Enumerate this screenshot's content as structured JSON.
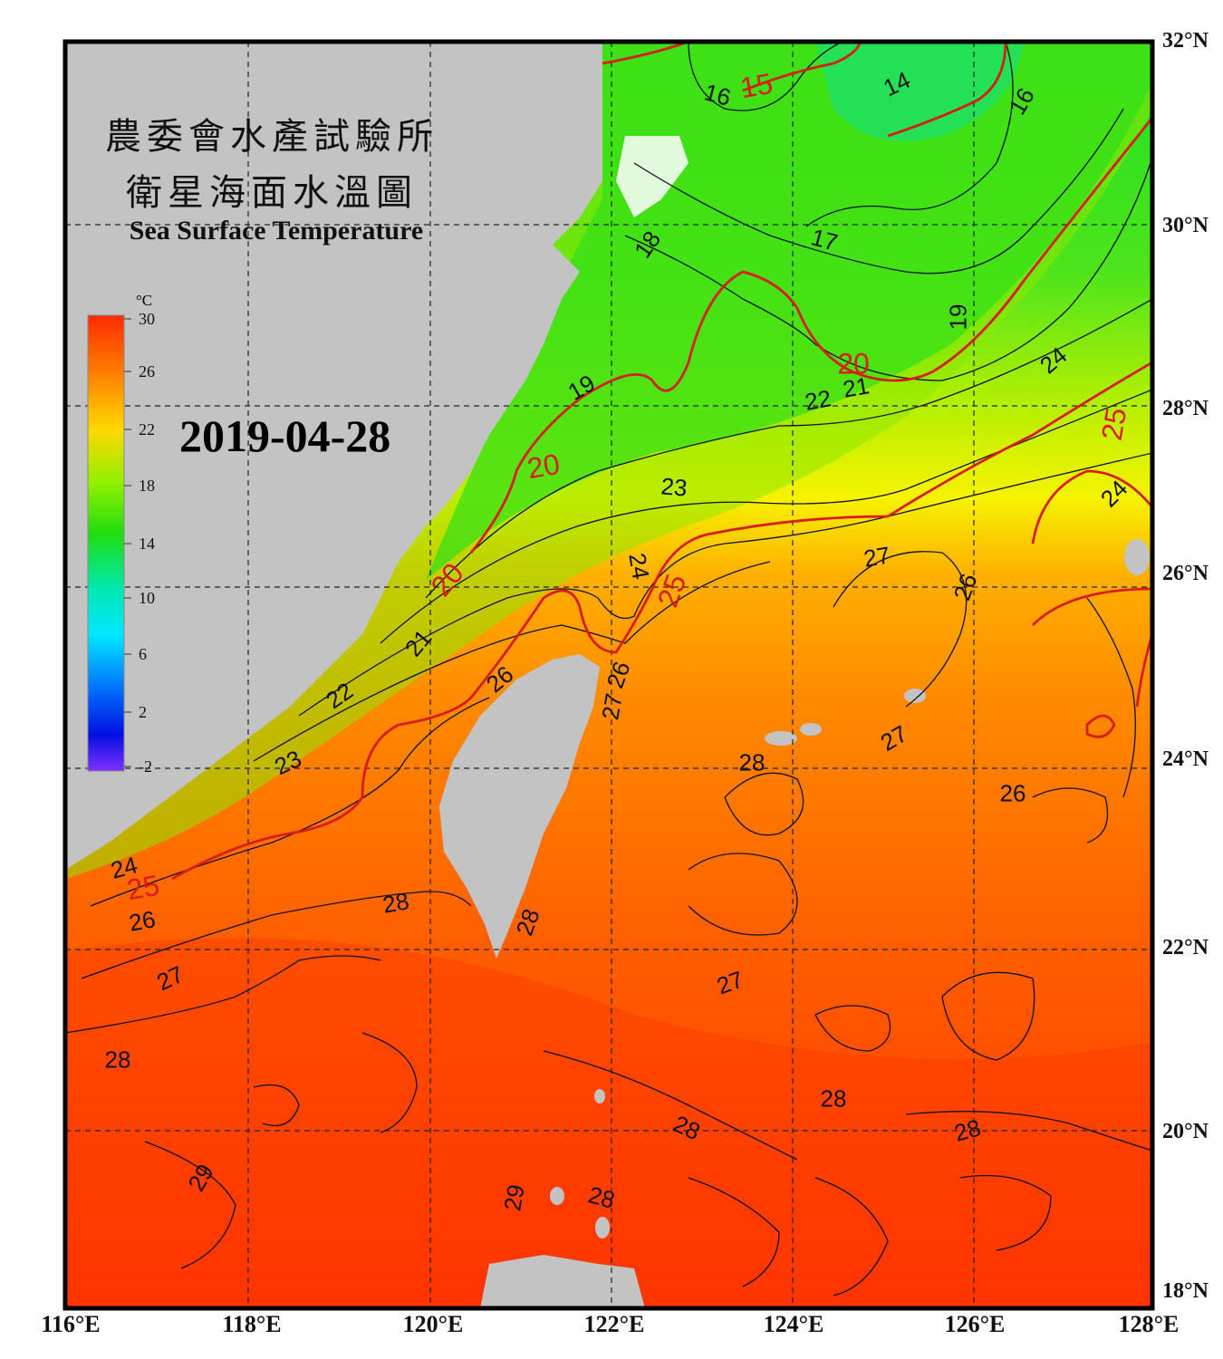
{
  "title_zh_line1": "農委會水產試驗所",
  "title_zh_line2": "衛星海面水溫圖",
  "title_en": "Sea Surface Temperature",
  "date": "2019-04-28",
  "colorbar": {
    "unit": "°C",
    "ticks": [
      "30",
      "26",
      "22",
      "18",
      "14",
      "10",
      "6",
      "2",
      "-2"
    ],
    "colors": [
      "#ff3300",
      "#ff7a00",
      "#ffd800",
      "#b6ff00",
      "#2ee000",
      "#00e0a0",
      "#00f0ff",
      "#0090ff",
      "#0010e0",
      "#7a2bff"
    ]
  },
  "lat_labels": [
    "32°N",
    "30°N",
    "28°N",
    "26°N",
    "24°N",
    "22°N",
    "20°N",
    "18°N"
  ],
  "lon_labels": [
    "116°E",
    "118°E",
    "120°E",
    "122°E",
    "124°E",
    "126°E",
    "128°E"
  ],
  "contour_labels": [
    {
      "text": "16",
      "red": false
    },
    {
      "text": "15",
      "red": true
    },
    {
      "text": "14",
      "red": false
    },
    {
      "text": "16",
      "red": false
    },
    {
      "text": "18",
      "red": false
    },
    {
      "text": "17",
      "red": false
    },
    {
      "text": "19",
      "red": false
    },
    {
      "text": "20",
      "red": true
    },
    {
      "text": "21",
      "red": false
    },
    {
      "text": "22",
      "red": false
    },
    {
      "text": "24",
      "red": false
    },
    {
      "text": "25",
      "red": true
    },
    {
      "text": "19",
      "red": false
    },
    {
      "text": "20",
      "red": true
    },
    {
      "text": "23",
      "red": false
    },
    {
      "text": "24",
      "red": false
    },
    {
      "text": "24",
      "red": false
    },
    {
      "text": "25",
      "red": true
    },
    {
      "text": "27",
      "red": false
    },
    {
      "text": "26",
      "red": false
    },
    {
      "text": "20",
      "red": true
    },
    {
      "text": "21",
      "red": false
    },
    {
      "text": "22",
      "red": false
    },
    {
      "text": "26",
      "red": false
    },
    {
      "text": "26",
      "red": false
    },
    {
      "text": "27",
      "red": false
    },
    {
      "text": "23",
      "red": false
    },
    {
      "text": "27",
      "red": false
    },
    {
      "text": "28",
      "red": false
    },
    {
      "text": "26",
      "red": false
    },
    {
      "text": "24",
      "red": false
    },
    {
      "text": "25",
      "red": true
    },
    {
      "text": "26",
      "red": false
    },
    {
      "text": "28",
      "red": false
    },
    {
      "text": "28",
      "red": false
    },
    {
      "text": "27",
      "red": false
    },
    {
      "text": "27",
      "red": false
    },
    {
      "text": "28",
      "red": false
    },
    {
      "text": "28",
      "red": false
    },
    {
      "text": "28",
      "red": false
    },
    {
      "text": "28",
      "red": false
    },
    {
      "text": "29",
      "red": false
    },
    {
      "text": "29",
      "red": false
    },
    {
      "text": "28",
      "red": false
    }
  ]
}
